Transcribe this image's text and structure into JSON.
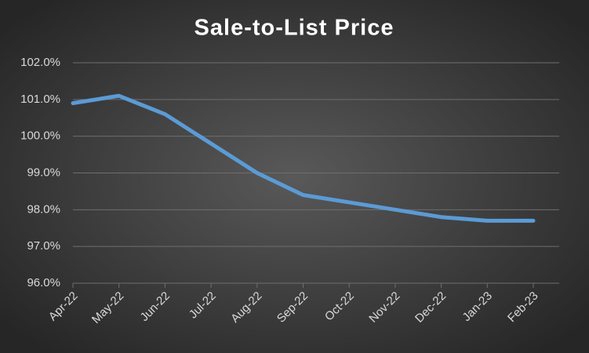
{
  "chart_data": {
    "type": "line",
    "title": "Sale-to-List Price",
    "categories": [
      "Apr-22",
      "May-22",
      "Jun-22",
      "Jul-22",
      "Aug-22",
      "Sep-22",
      "Oct-22",
      "Nov-22",
      "Dec-22",
      "Jan-23",
      "Feb-23"
    ],
    "values": [
      100.9,
      101.1,
      100.6,
      99.8,
      99.0,
      98.4,
      98.2,
      98.0,
      97.8,
      97.7,
      97.7
    ],
    "color": "#5b9bd5",
    "ylim": [
      96,
      102
    ],
    "yticks": [
      {
        "value": 96,
        "label": "96.0%"
      },
      {
        "value": 97,
        "label": "97.0%"
      },
      {
        "value": 98,
        "label": "98.0%"
      },
      {
        "value": 99,
        "label": "99.0%"
      },
      {
        "value": 100,
        "label": "100.0%"
      },
      {
        "value": 101,
        "label": "101.0%"
      },
      {
        "value": 102,
        "label": "102.0%"
      }
    ],
    "grid": true
  }
}
